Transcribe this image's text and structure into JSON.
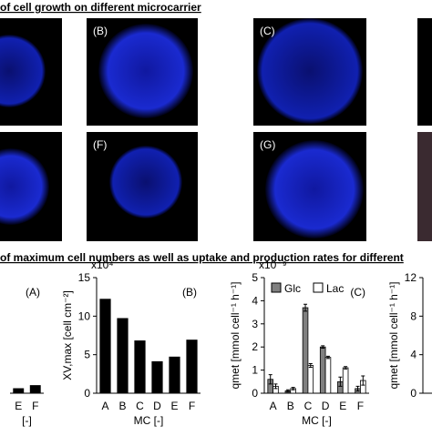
{
  "header": {
    "section_a": "of cell growth on different microcarrier",
    "section_b": "of maximum cell numbers as well as uptake and production rates for different"
  },
  "images": [
    {
      "label": "(B)"
    },
    {
      "label": "(C)"
    },
    {
      "label": "(F)"
    },
    {
      "label": "(G)"
    }
  ],
  "chart_data": [
    {
      "type": "bar",
      "panel_label": "(A)",
      "xlabel": "[-]",
      "categories": [
        "E",
        "F"
      ],
      "series": [
        {
          "color": "#000000",
          "values": [
            0.6,
            1.0
          ]
        }
      ],
      "ylim": [
        0,
        15
      ]
    },
    {
      "type": "bar",
      "panel_label": "(B)",
      "multiplier": "x10⁴",
      "ylabel": "XV,max [cell cm⁻²]",
      "xlabel": "MC [-]",
      "categories": [
        "A",
        "B",
        "C",
        "D",
        "E",
        "F"
      ],
      "series": [
        {
          "color": "#000000",
          "values": [
            12.2,
            9.7,
            6.8,
            4.1,
            4.7,
            6.9
          ]
        }
      ],
      "ylim": [
        0,
        15
      ],
      "yticks": [
        0,
        5,
        10,
        15
      ]
    },
    {
      "type": "bar",
      "panel_label": "(C)",
      "multiplier": "x10⁻⁹",
      "ylabel": "qmet [mmol cell⁻¹ h⁻¹]",
      "xlabel": "MC [-]",
      "categories": [
        "A",
        "B",
        "C",
        "D",
        "E",
        "F"
      ],
      "series": [
        {
          "name": "Glc",
          "color": "#808080",
          "values": [
            0.6,
            0.1,
            3.7,
            2.0,
            0.5,
            0.2
          ],
          "errors": [
            0.2,
            0.05,
            0.15,
            0.05,
            0.2,
            0.1
          ]
        },
        {
          "name": "Lac",
          "color": "#ffffff",
          "values": [
            0.3,
            0.2,
            1.2,
            1.55,
            1.1,
            0.55
          ],
          "errors": [
            0.1,
            0.05,
            0.08,
            0.05,
            0.05,
            0.2
          ]
        }
      ],
      "ylim": [
        0,
        5
      ],
      "yticks": [
        0,
        1,
        2,
        3,
        4,
        5
      ]
    },
    {
      "type": "bar",
      "ylabel": "qmet [mmol cell⁻¹ h⁻¹]",
      "categories": [],
      "series": [],
      "ylim": [
        0,
        12
      ],
      "yticks": [
        0,
        4,
        8,
        12
      ]
    }
  ]
}
